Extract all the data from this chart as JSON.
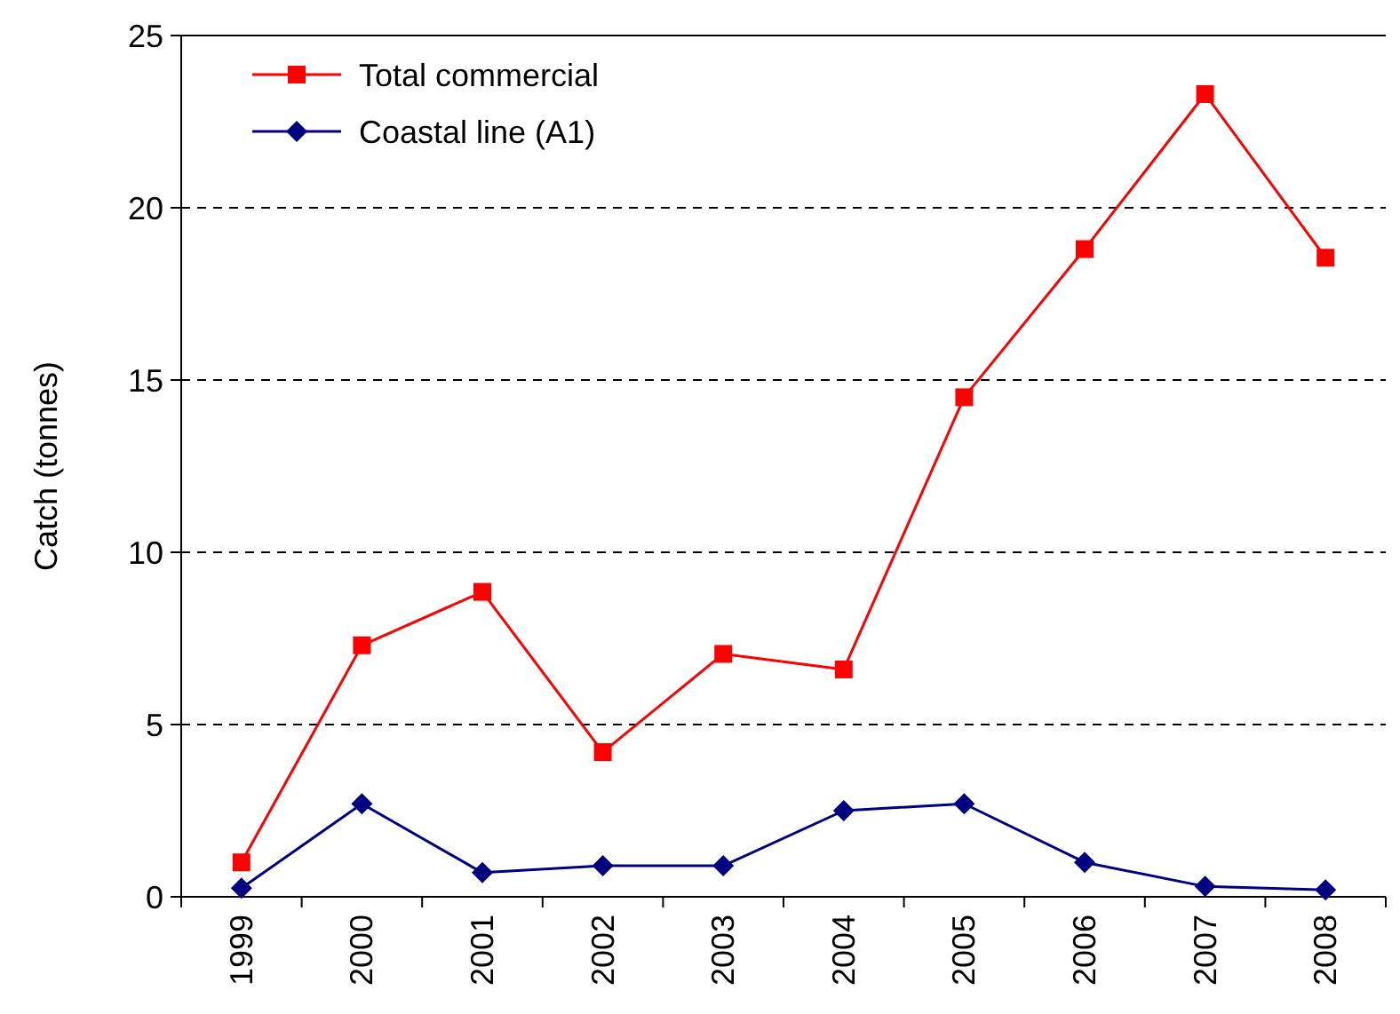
{
  "chart_data": {
    "type": "line",
    "ylabel": "Catch (tonnes)",
    "categories": [
      "1999",
      "2000",
      "2001",
      "2002",
      "2003",
      "2004",
      "2005",
      "2006",
      "2007",
      "2008"
    ],
    "series": [
      {
        "name": "Total commercial",
        "color": "#ff0000",
        "marker": "square",
        "values": [
          1.0,
          7.3,
          8.85,
          4.2,
          7.05,
          6.6,
          14.5,
          18.8,
          23.3,
          18.55
        ]
      },
      {
        "name": "Coastal line (A1)",
        "color": "#000080",
        "marker": "diamond",
        "values": [
          0.25,
          2.7,
          0.7,
          0.9,
          0.9,
          2.5,
          2.7,
          1.0,
          0.3,
          0.2
        ]
      }
    ],
    "ylim": [
      0,
      25
    ],
    "yticks": [
      0,
      5,
      10,
      15,
      20,
      25
    ],
    "grid": "y",
    "legend": "top left",
    "line_style": "solid"
  }
}
